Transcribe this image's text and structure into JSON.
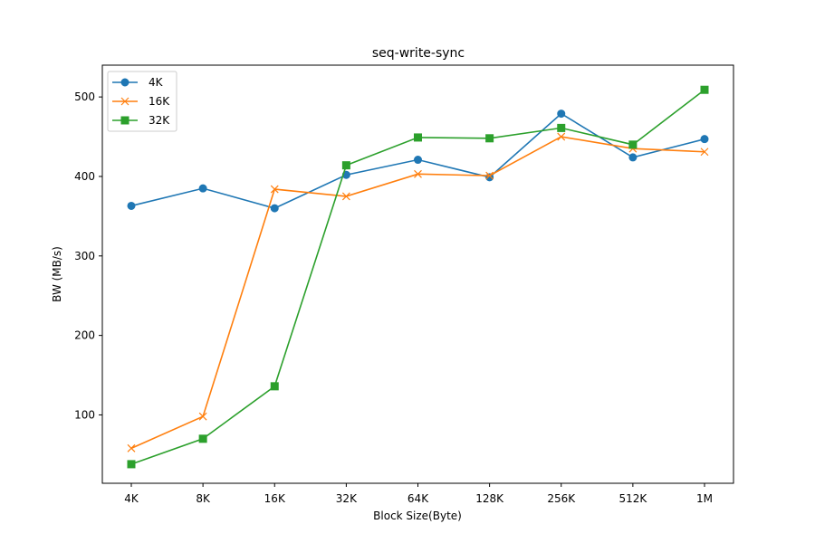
{
  "chart_data": {
    "type": "line",
    "title": "seq-write-sync",
    "xlabel": "Block Size(Byte)",
    "ylabel": "BW (MB/s)",
    "categories": [
      "4K",
      "8K",
      "16K",
      "32K",
      "64K",
      "128K",
      "256K",
      "512K",
      "1M"
    ],
    "ylim": [
      14,
      540
    ],
    "yticks": [
      100,
      200,
      300,
      400,
      500
    ],
    "grid": false,
    "legend": "top-left",
    "series": [
      {
        "name": "4K",
        "marker": "circle",
        "color": "#1f77b4",
        "values": [
          363,
          385,
          360,
          402,
          421,
          399,
          479,
          424,
          447
        ]
      },
      {
        "name": "16K",
        "marker": "x",
        "color": "#ff7f0e",
        "values": [
          58,
          98,
          384,
          375,
          403,
          401,
          450,
          435,
          431
        ]
      },
      {
        "name": "32K",
        "marker": "square",
        "color": "#2ca02c",
        "values": [
          38,
          70,
          136,
          414,
          449,
          448,
          461,
          440,
          509
        ]
      }
    ]
  }
}
